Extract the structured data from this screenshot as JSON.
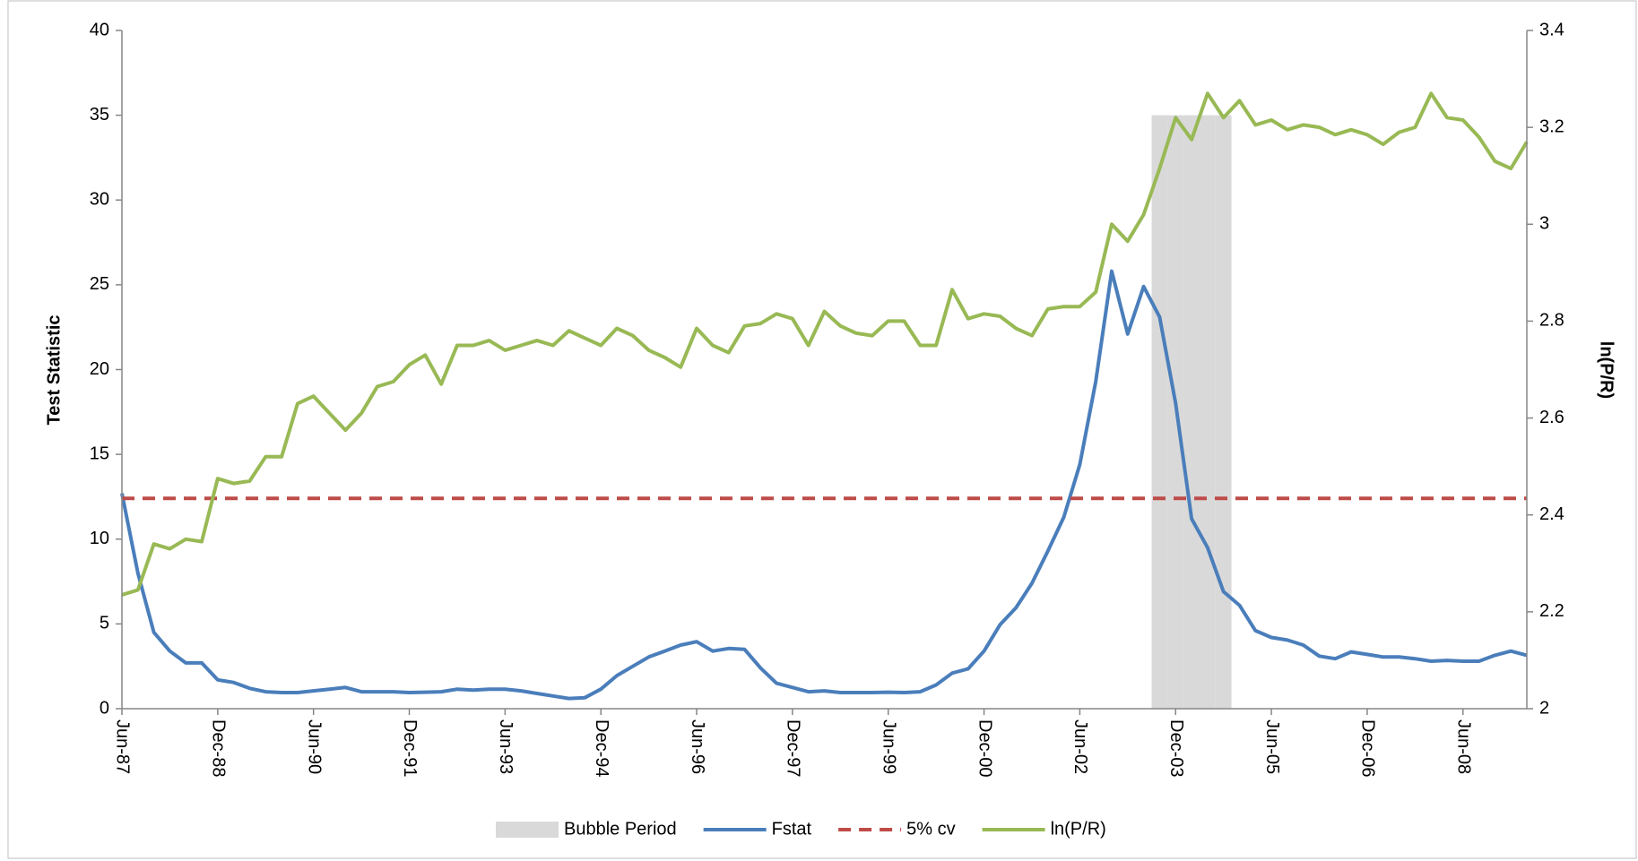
{
  "chart_data": {
    "type": "line",
    "y_label": "Test Statistic",
    "y2_label": "ln(P/R)",
    "categories": [
      "Jun-87",
      null,
      null,
      null,
      null,
      null,
      "Dec-88",
      null,
      null,
      null,
      null,
      null,
      "Jun-90",
      null,
      null,
      null,
      null,
      null,
      "Dec-91",
      null,
      null,
      null,
      null,
      null,
      "Jun-93",
      null,
      null,
      null,
      null,
      null,
      "Dec-94",
      null,
      null,
      null,
      null,
      null,
      "Jun-96",
      null,
      null,
      null,
      null,
      null,
      "Dec-97",
      null,
      null,
      null,
      null,
      null,
      "Jun-99",
      null,
      null,
      null,
      null,
      null,
      "Dec-00",
      null,
      null,
      null,
      null,
      null,
      "Jun-02",
      null,
      null,
      null,
      null,
      null,
      "Dec-03",
      null,
      null,
      null,
      null,
      null,
      "Jun-05",
      null,
      null,
      null,
      null,
      null,
      "Dec-06",
      null,
      null,
      null,
      null,
      null,
      "Jun-08",
      null,
      null,
      null,
      null
    ],
    "ylim": [
      0,
      40
    ],
    "yticks": [
      0,
      5,
      10,
      15,
      20,
      25,
      30,
      35,
      40
    ],
    "y2lim": [
      2,
      3.4
    ],
    "y2ticks": [
      2,
      2.2,
      2.4,
      2.6,
      2.8,
      3,
      3.2,
      3.4
    ],
    "series": [
      {
        "name": "Bubble Period",
        "type": "bar",
        "color": "#d9d9d9",
        "values": [
          null,
          null,
          null,
          null,
          null,
          null,
          null,
          null,
          null,
          null,
          null,
          null,
          null,
          null,
          null,
          null,
          null,
          null,
          null,
          null,
          null,
          null,
          null,
          null,
          null,
          null,
          null,
          null,
          null,
          null,
          null,
          null,
          null,
          null,
          null,
          null,
          null,
          null,
          null,
          null,
          null,
          null,
          null,
          null,
          null,
          null,
          null,
          null,
          null,
          null,
          null,
          null,
          null,
          null,
          null,
          null,
          null,
          null,
          null,
          null,
          null,
          null,
          null,
          null,
          null,
          35,
          35,
          35,
          35,
          35,
          null,
          null,
          null,
          null,
          null,
          null,
          null,
          null,
          null,
          null,
          null,
          null,
          null,
          null,
          null,
          null,
          null,
          null,
          null
        ]
      },
      {
        "name": "Fstat",
        "type": "line",
        "color": "#4a7ebb",
        "values": [
          12.7,
          8,
          4.5,
          3.4,
          2.7,
          2.7,
          1.7,
          1.55,
          1.2,
          1.0,
          0.95,
          0.95,
          1.05,
          1.15,
          1.25,
          1.0,
          1.0,
          1.0,
          0.95,
          0.97,
          1.0,
          1.15,
          1.1,
          1.15,
          1.15,
          1.05,
          0.9,
          0.75,
          0.6,
          0.65,
          1.15,
          1.95,
          2.5,
          3.05,
          3.4,
          3.75,
          3.95,
          3.4,
          3.55,
          3.5,
          2.4,
          1.5,
          1.25,
          1.0,
          1.05,
          0.95,
          0.95,
          0.95,
          0.97,
          0.95,
          1.0,
          1.4,
          2.1,
          2.35,
          3.4,
          4.95,
          5.95,
          7.4,
          9.3,
          11.3,
          14.4,
          19.3,
          25.8,
          22.1,
          24.9,
          23.1,
          18,
          11.2,
          9.5,
          6.9,
          6.1,
          4.6,
          4.2,
          4.05,
          3.75,
          3.1,
          2.95,
          3.35,
          3.2,
          3.05,
          3.05,
          2.95,
          2.8,
          2.85,
          2.8,
          2.8,
          3.15,
          3.4,
          3.15
        ]
      },
      {
        "name": "5% cv",
        "type": "line",
        "dashed": true,
        "color": "#be4b48",
        "values": [
          12.4,
          12.4,
          12.4,
          12.4,
          12.4,
          12.4,
          12.4,
          12.4,
          12.4,
          12.4,
          12.4,
          12.4,
          12.4,
          12.4,
          12.4,
          12.4,
          12.4,
          12.4,
          12.4,
          12.4,
          12.4,
          12.4,
          12.4,
          12.4,
          12.4,
          12.4,
          12.4,
          12.4,
          12.4,
          12.4,
          12.4,
          12.4,
          12.4,
          12.4,
          12.4,
          12.4,
          12.4,
          12.4,
          12.4,
          12.4,
          12.4,
          12.4,
          12.4,
          12.4,
          12.4,
          12.4,
          12.4,
          12.4,
          12.4,
          12.4,
          12.4,
          12.4,
          12.4,
          12.4,
          12.4,
          12.4,
          12.4,
          12.4,
          12.4,
          12.4,
          12.4,
          12.4,
          12.4,
          12.4,
          12.4,
          12.4,
          12.4,
          12.4,
          12.4,
          12.4,
          12.4,
          12.4,
          12.4,
          12.4,
          12.4,
          12.4,
          12.4,
          12.4,
          12.4,
          12.4,
          12.4,
          12.4,
          12.4,
          12.4,
          12.4,
          12.4,
          12.4,
          12.4,
          12.4
        ]
      },
      {
        "name": "ln(P/R)",
        "type": "line",
        "axis": "y2",
        "color": "#98b954",
        "values": [
          2.235,
          2.245,
          2.34,
          2.33,
          2.35,
          2.345,
          2.475,
          2.465,
          2.47,
          2.52,
          2.52,
          2.63,
          2.645,
          2.61,
          2.575,
          2.61,
          2.665,
          2.675,
          2.71,
          2.73,
          2.67,
          2.75,
          2.75,
          2.76,
          2.74,
          2.75,
          2.76,
          2.75,
          2.78,
          2.765,
          2.75,
          2.785,
          2.77,
          2.74,
          2.725,
          2.705,
          2.785,
          2.75,
          2.735,
          2.79,
          2.795,
          2.815,
          2.805,
          2.75,
          2.82,
          2.79,
          2.775,
          2.77,
          2.8,
          2.8,
          2.75,
          2.75,
          2.865,
          2.805,
          2.815,
          2.81,
          2.785,
          2.77,
          2.825,
          2.83,
          2.83,
          2.86,
          3.0,
          2.965,
          3.02,
          3.115,
          3.22,
          3.175,
          3.27,
          3.22,
          3.255,
          3.205,
          3.215,
          3.195,
          3.205,
          3.2,
          3.185,
          3.195,
          3.185,
          3.165,
          3.19,
          3.2,
          3.27,
          3.22,
          3.215,
          3.18,
          3.13,
          3.115,
          3.17
        ]
      }
    ]
  }
}
